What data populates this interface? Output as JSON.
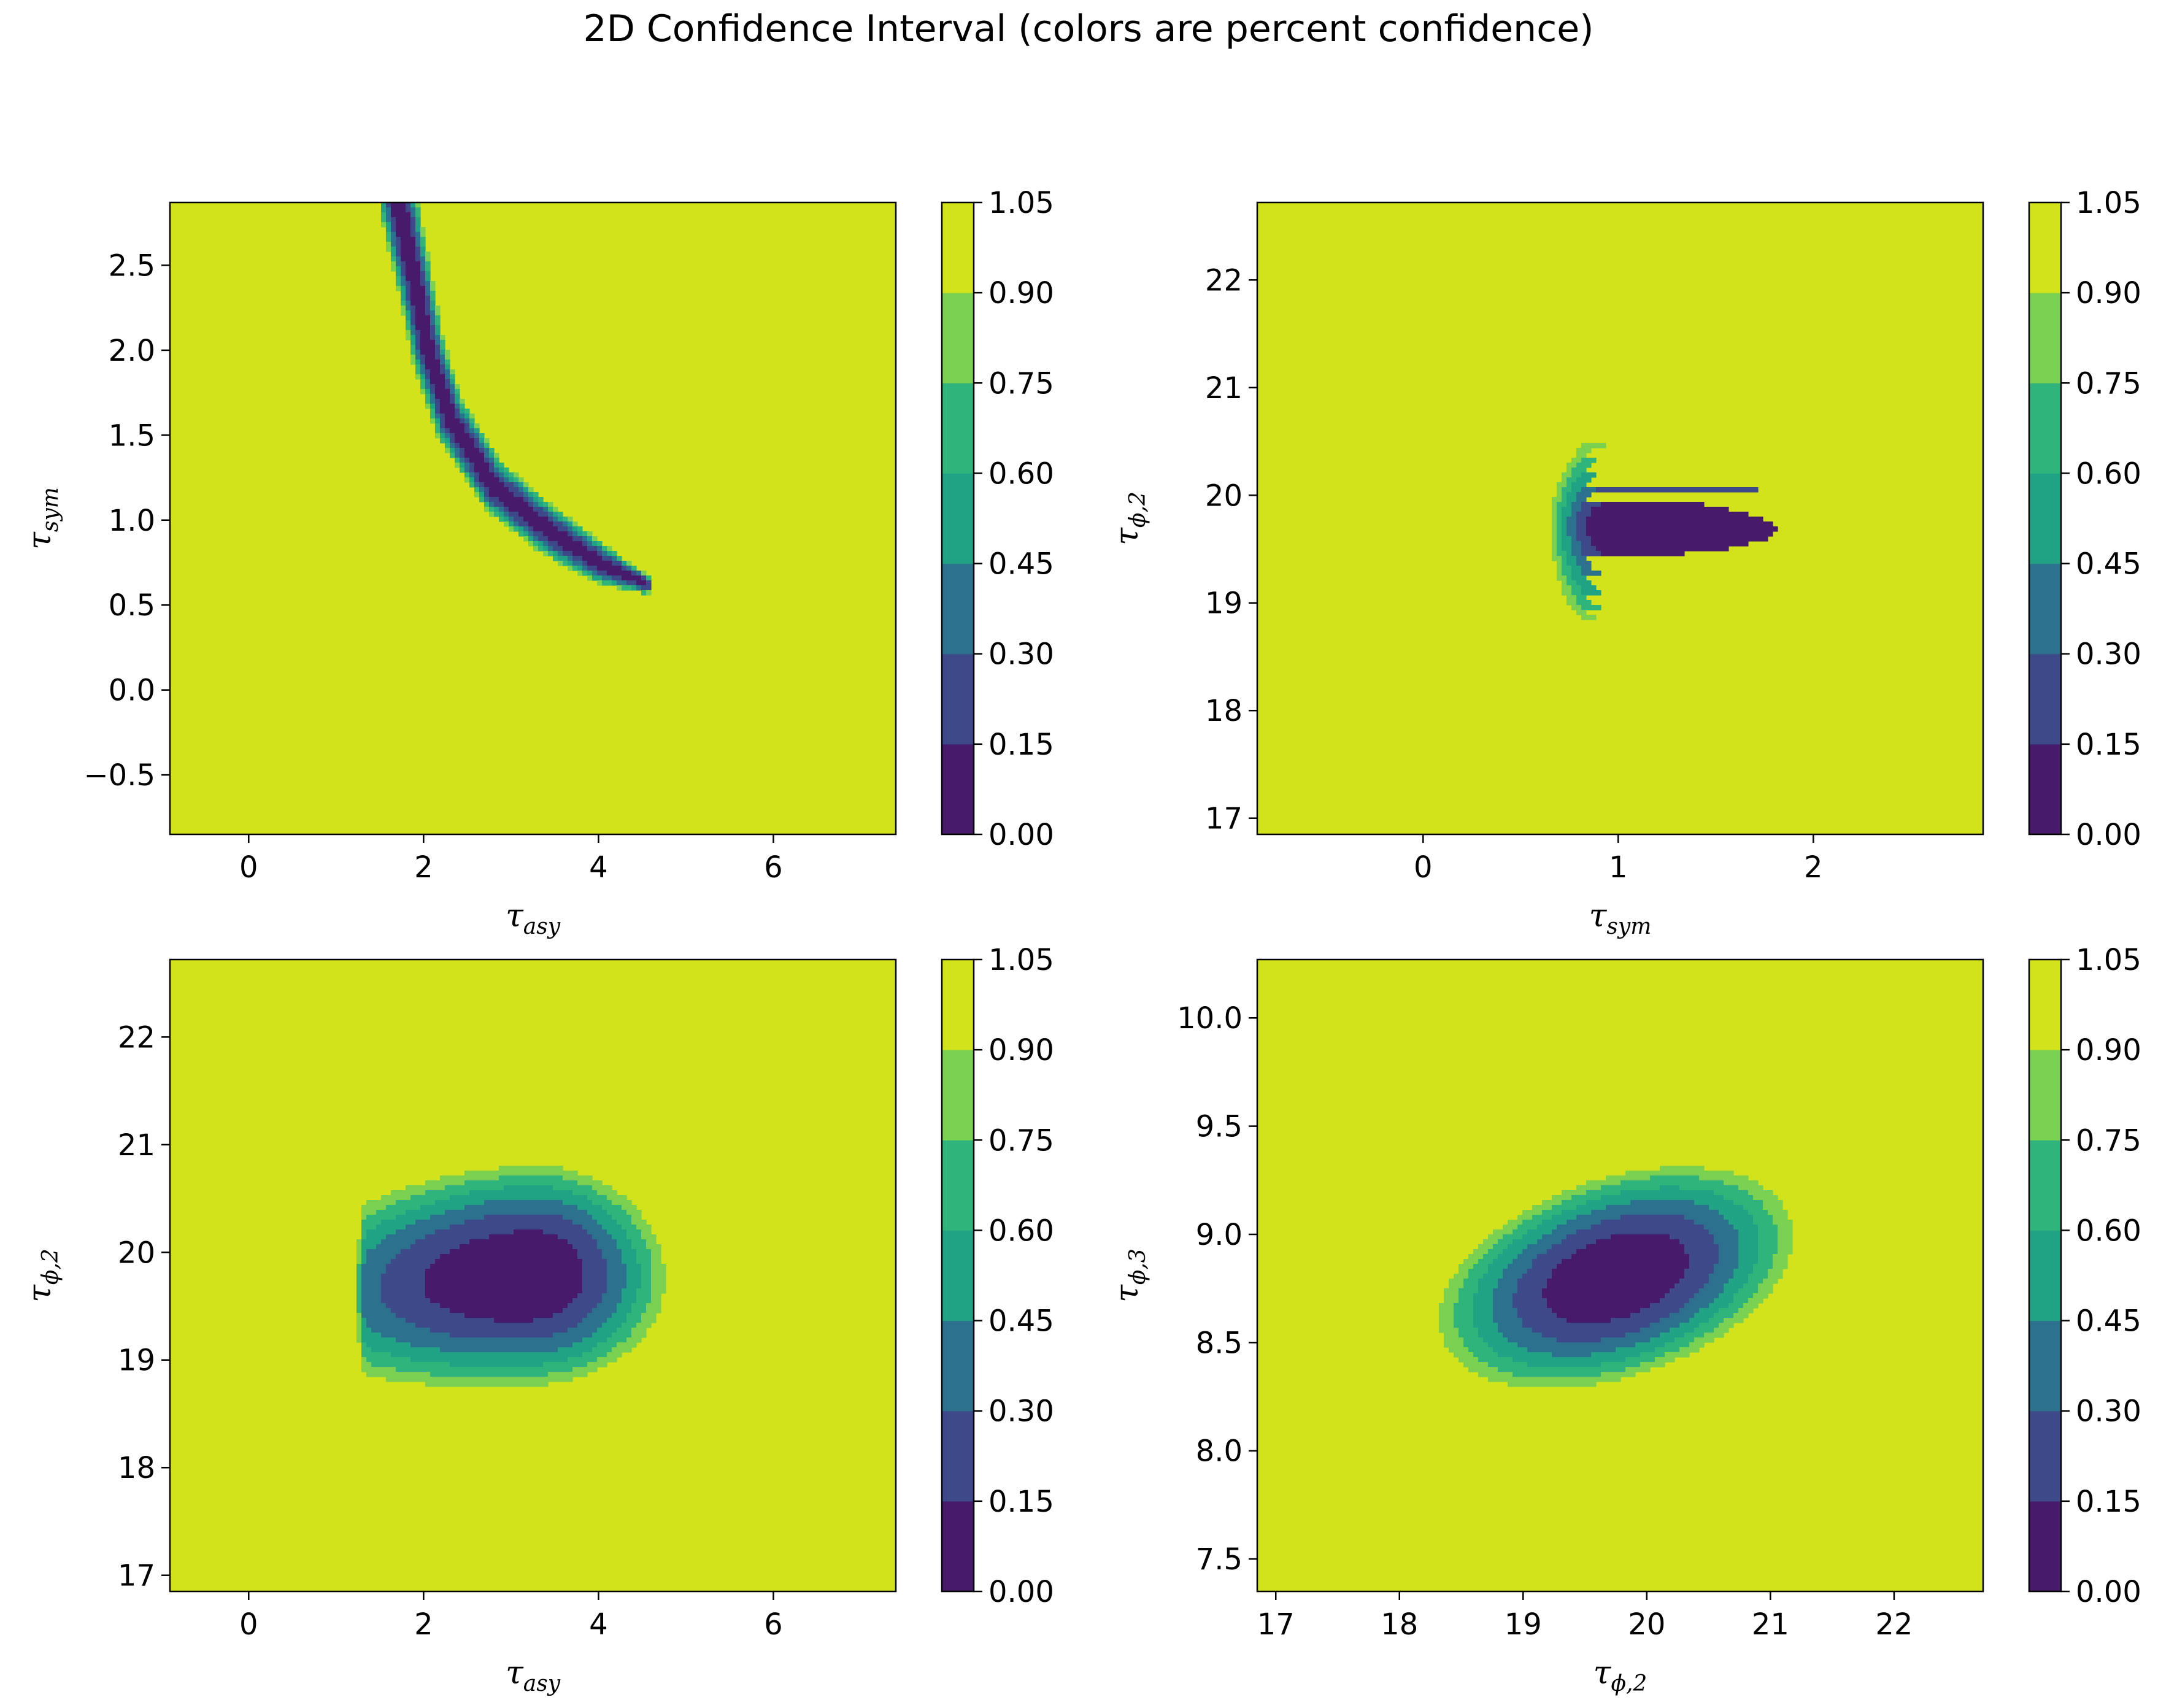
{
  "figure": {
    "title": "2D Confidence Interval (colors are percent confidence)"
  },
  "colors": {
    "levels": [
      "#440154",
      "#443983",
      "#31688e",
      "#21918c",
      "#35b779",
      "#90d743",
      "#fde725"
    ],
    "bands": [
      "#481a6c",
      "#3e4989",
      "#2c728e",
      "#20a385",
      "#2fb47c",
      "#7ad151",
      "#d2e21b"
    ],
    "background": "#d2e21b"
  },
  "chart_data": [
    {
      "type": "contour",
      "panel": "top-left",
      "xlabel": {
        "base": "τ",
        "sub": "asy"
      },
      "ylabel": {
        "base": "τ",
        "sub": "sym"
      },
      "xlim": [
        -0.9,
        7.4
      ],
      "ylim": [
        -0.85,
        2.87
      ],
      "xticks": [
        {
          "v": 0,
          "label": "0"
        },
        {
          "v": 2,
          "label": "2"
        },
        {
          "v": 4,
          "label": "4"
        },
        {
          "v": 6,
          "label": "6"
        }
      ],
      "yticks": [
        {
          "v": -0.5,
          "label": "−0.5"
        },
        {
          "v": 0.0,
          "label": "0.0"
        },
        {
          "v": 0.5,
          "label": "0.5"
        },
        {
          "v": 1.0,
          "label": "1.0"
        },
        {
          "v": 1.5,
          "label": "1.5"
        },
        {
          "v": 2.0,
          "label": "2.0"
        },
        {
          "v": 2.5,
          "label": "2.5"
        }
      ],
      "colorbar": {
        "ticks": [
          "0.00",
          "0.15",
          "0.30",
          "0.45",
          "0.60",
          "0.75",
          "0.90",
          "1.05"
        ]
      },
      "shape": "banana",
      "valley": [
        [
          1.7,
          2.9
        ],
        [
          1.9,
          2.4
        ],
        [
          2.05,
          2.0
        ],
        [
          2.3,
          1.6
        ],
        [
          2.8,
          1.2
        ],
        [
          3.4,
          0.95
        ],
        [
          4.0,
          0.75
        ],
        [
          4.55,
          0.62
        ]
      ],
      "valley_width": [
        0.22,
        0.2,
        0.19,
        0.18,
        0.17,
        0.16,
        0.13,
        0.06
      ]
    },
    {
      "type": "contour",
      "panel": "top-right",
      "xlabel": {
        "base": "τ",
        "sub": "sym"
      },
      "ylabel": {
        "base": "τ",
        "sub": "ϕ,2"
      },
      "xlim": [
        -0.85,
        2.87
      ],
      "ylim": [
        16.85,
        22.72
      ],
      "xticks": [
        {
          "v": 0,
          "label": "0"
        },
        {
          "v": 1,
          "label": "1"
        },
        {
          "v": 2,
          "label": "2"
        }
      ],
      "yticks": [
        {
          "v": 17,
          "label": "17"
        },
        {
          "v": 18,
          "label": "18"
        },
        {
          "v": 19,
          "label": "19"
        },
        {
          "v": 20,
          "label": "20"
        },
        {
          "v": 21,
          "label": "21"
        },
        {
          "v": 22,
          "label": "22"
        }
      ],
      "colorbar": {
        "ticks": [
          "0.00",
          "0.15",
          "0.30",
          "0.45",
          "0.60",
          "0.75",
          "0.90",
          "1.05"
        ]
      },
      "shape": "plateau",
      "edge": 0.95,
      "center_y": 19.65,
      "min_point": [
        1.1,
        19.75
      ]
    },
    {
      "type": "contour",
      "panel": "bottom-left",
      "xlabel": {
        "base": "τ",
        "sub": "asy"
      },
      "ylabel": {
        "base": "τ",
        "sub": "ϕ,2"
      },
      "xlim": [
        -0.9,
        7.4
      ],
      "ylim": [
        16.85,
        22.72
      ],
      "xticks": [
        {
          "v": 0,
          "label": "0"
        },
        {
          "v": 2,
          "label": "2"
        },
        {
          "v": 4,
          "label": "4"
        },
        {
          "v": 6,
          "label": "6"
        }
      ],
      "yticks": [
        {
          "v": 17,
          "label": "17"
        },
        {
          "v": 18,
          "label": "18"
        },
        {
          "v": 19,
          "label": "19"
        },
        {
          "v": 20,
          "label": "20"
        },
        {
          "v": 21,
          "label": "21"
        },
        {
          "v": 22,
          "label": "22"
        }
      ],
      "colorbar": {
        "ticks": [
          "0.00",
          "0.15",
          "0.30",
          "0.45",
          "0.60",
          "0.75",
          "0.90",
          "1.05"
        ]
      },
      "shape": "blob",
      "min_point": [
        3.2,
        19.75
      ]
    },
    {
      "type": "contour",
      "panel": "bottom-right",
      "xlabel": {
        "base": "τ",
        "sub": "ϕ,2"
      },
      "ylabel": {
        "base": "τ",
        "sub": "ϕ,3"
      },
      "xlim": [
        16.85,
        22.72
      ],
      "ylim": [
        7.35,
        10.27
      ],
      "xticks": [
        {
          "v": 17,
          "label": "17"
        },
        {
          "v": 18,
          "label": "18"
        },
        {
          "v": 19,
          "label": "19"
        },
        {
          "v": 20,
          "label": "20"
        },
        {
          "v": 21,
          "label": "21"
        },
        {
          "v": 22,
          "label": "22"
        }
      ],
      "yticks": [
        {
          "v": 7.5,
          "label": "7.5"
        },
        {
          "v": 8.0,
          "label": "8.0"
        },
        {
          "v": 8.5,
          "label": "8.5"
        },
        {
          "v": 9.0,
          "label": "9.0"
        },
        {
          "v": 9.5,
          "label": "9.5"
        },
        {
          "v": 10.0,
          "label": "10.0"
        }
      ],
      "colorbar": {
        "ticks": [
          "0.00",
          "0.15",
          "0.30",
          "0.45",
          "0.60",
          "0.75",
          "0.90",
          "1.05"
        ]
      },
      "shape": "ellipse",
      "min_point": [
        19.75,
        8.8
      ]
    }
  ]
}
